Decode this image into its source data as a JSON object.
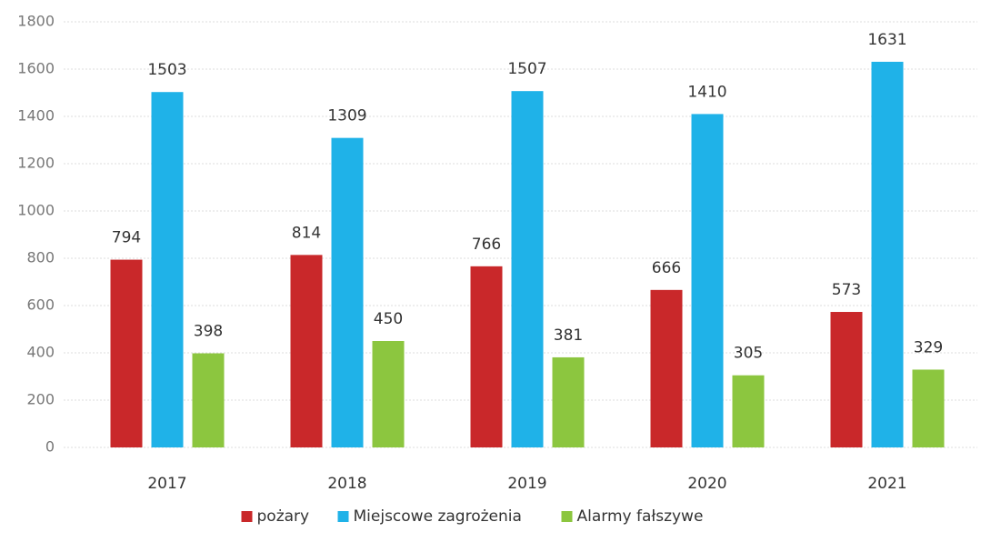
{
  "chart_data": {
    "type": "bar",
    "categories": [
      "2017",
      "2018",
      "2019",
      "2020",
      "2021"
    ],
    "series": [
      {
        "name": "pożary",
        "color": "#c9282a",
        "values": [
          794,
          814,
          766,
          666,
          573
        ]
      },
      {
        "name": "Miejscowe zagrożenia",
        "color": "#1fb2e8",
        "values": [
          1503,
          1309,
          1507,
          1410,
          1631
        ]
      },
      {
        "name": "Alarmy fałszywe",
        "color": "#8cc63f",
        "values": [
          398,
          450,
          381,
          305,
          329
        ]
      }
    ],
    "ylim": [
      0,
      1800
    ],
    "yticks": [
      0,
      200,
      400,
      600,
      800,
      1000,
      1200,
      1400,
      1600,
      1800
    ],
    "grid": true,
    "legend": "bottom"
  }
}
